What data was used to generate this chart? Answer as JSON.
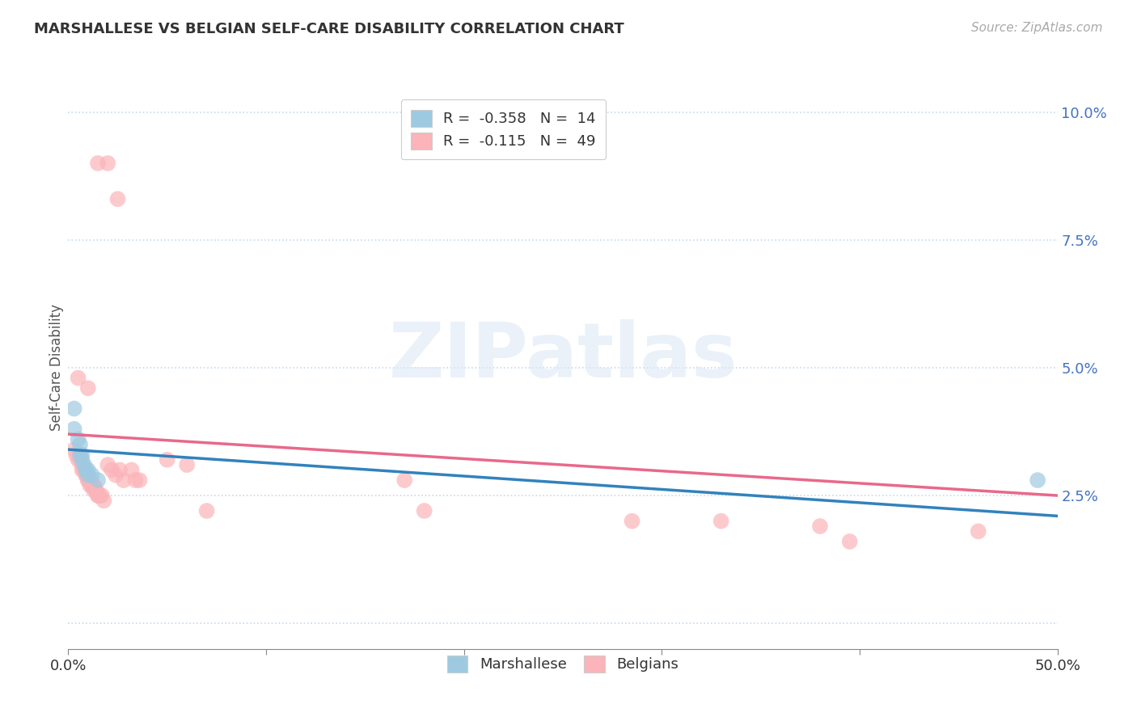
{
  "title": "MARSHALLESE VS BELGIAN SELF-CARE DISABILITY CORRELATION CHART",
  "source": "Source: ZipAtlas.com",
  "ylabel": "Self-Care Disability",
  "xlim": [
    0.0,
    0.5
  ],
  "ylim": [
    -0.005,
    0.105
  ],
  "xticks": [
    0.0,
    0.1,
    0.2,
    0.3,
    0.4,
    0.5
  ],
  "xticklabels": [
    "0.0%",
    "",
    "",
    "",
    "",
    "50.0%"
  ],
  "yticks": [
    0.0,
    0.025,
    0.05,
    0.075,
    0.1
  ],
  "yticklabels": [
    "",
    "2.5%",
    "5.0%",
    "7.5%",
    "10.0%"
  ],
  "blue_scatter_color": "#9ecae1",
  "pink_scatter_color": "#fbb4b9",
  "blue_line_color": "#3182bd",
  "pink_line_color": "#e8698a",
  "grid_color": "#c6d9f0",
  "background_color": "#ffffff",
  "watermark": "ZIPatlas",
  "marshallese_points": [
    [
      0.003,
      0.042
    ],
    [
      0.003,
      0.038
    ],
    [
      0.005,
      0.036
    ],
    [
      0.006,
      0.035
    ],
    [
      0.006,
      0.033
    ],
    [
      0.007,
      0.033
    ],
    [
      0.007,
      0.032
    ],
    [
      0.008,
      0.031
    ],
    [
      0.009,
      0.03
    ],
    [
      0.01,
      0.03
    ],
    [
      0.01,
      0.029
    ],
    [
      0.012,
      0.029
    ],
    [
      0.015,
      0.028
    ],
    [
      0.49,
      0.028
    ]
  ],
  "belgian_points": [
    [
      0.015,
      0.09
    ],
    [
      0.02,
      0.09
    ],
    [
      0.025,
      0.083
    ],
    [
      0.005,
      0.048
    ],
    [
      0.01,
      0.046
    ],
    [
      0.003,
      0.034
    ],
    [
      0.004,
      0.033
    ],
    [
      0.005,
      0.032
    ],
    [
      0.006,
      0.032
    ],
    [
      0.007,
      0.031
    ],
    [
      0.007,
      0.03
    ],
    [
      0.008,
      0.03
    ],
    [
      0.008,
      0.03
    ],
    [
      0.009,
      0.029
    ],
    [
      0.009,
      0.029
    ],
    [
      0.01,
      0.029
    ],
    [
      0.01,
      0.028
    ],
    [
      0.01,
      0.028
    ],
    [
      0.011,
      0.028
    ],
    [
      0.011,
      0.027
    ],
    [
      0.012,
      0.027
    ],
    [
      0.012,
      0.027
    ],
    [
      0.013,
      0.027
    ],
    [
      0.013,
      0.026
    ],
    [
      0.014,
      0.026
    ],
    [
      0.014,
      0.026
    ],
    [
      0.015,
      0.025
    ],
    [
      0.015,
      0.025
    ],
    [
      0.016,
      0.025
    ],
    [
      0.017,
      0.025
    ],
    [
      0.018,
      0.024
    ],
    [
      0.02,
      0.031
    ],
    [
      0.022,
      0.03
    ],
    [
      0.024,
      0.029
    ],
    [
      0.026,
      0.03
    ],
    [
      0.028,
      0.028
    ],
    [
      0.032,
      0.03
    ],
    [
      0.034,
      0.028
    ],
    [
      0.036,
      0.028
    ],
    [
      0.05,
      0.032
    ],
    [
      0.06,
      0.031
    ],
    [
      0.07,
      0.022
    ],
    [
      0.17,
      0.028
    ],
    [
      0.18,
      0.022
    ],
    [
      0.285,
      0.02
    ],
    [
      0.33,
      0.02
    ],
    [
      0.38,
      0.019
    ],
    [
      0.395,
      0.016
    ],
    [
      0.46,
      0.018
    ]
  ]
}
